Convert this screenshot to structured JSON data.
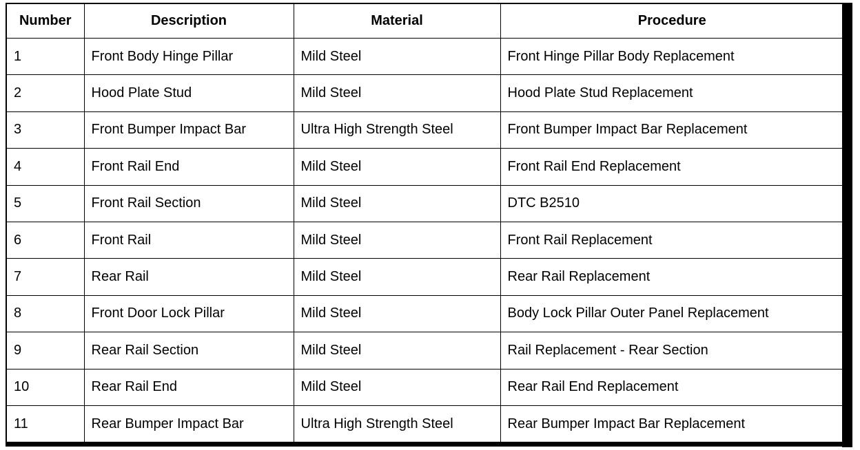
{
  "table": {
    "headers": [
      "Number",
      "Description",
      "Material",
      "Procedure"
    ],
    "rows": [
      [
        1,
        "Front Body Hinge Pillar",
        "Mild Steel",
        "Front Hinge Pillar Body Replacement"
      ],
      [
        2,
        "Hood Plate Stud",
        "Mild Steel",
        "Hood Plate Stud Replacement"
      ],
      [
        3,
        "Front Bumper Impact Bar",
        "Ultra High Strength Steel",
        "Front Bumper Impact Bar Replacement"
      ],
      [
        4,
        "Front Rail End",
        "Mild Steel",
        "Front Rail End Replacement"
      ],
      [
        5,
        "Front Rail Section",
        "Mild Steel",
        "DTC B2510"
      ],
      [
        6,
        "Front Rail",
        "Mild Steel",
        "Front Rail Replacement"
      ],
      [
        7,
        "Rear Rail",
        "Mild Steel",
        "Rear Rail Replacement"
      ],
      [
        8,
        "Front Door Lock Pillar",
        "Mild Steel",
        "Body Lock Pillar Outer Panel Replacement"
      ],
      [
        9,
        "Rear Rail Section",
        "Mild Steel",
        "Rail Replacement - Rear Section"
      ],
      [
        10,
        "Rear Rail End",
        "Mild Steel",
        "Rear Rail End Replacement"
      ],
      [
        11,
        "Rear Bumper Impact Bar",
        "Ultra High Strength Steel",
        "Rear Bumper Impact Bar Replacement"
      ]
    ]
  }
}
